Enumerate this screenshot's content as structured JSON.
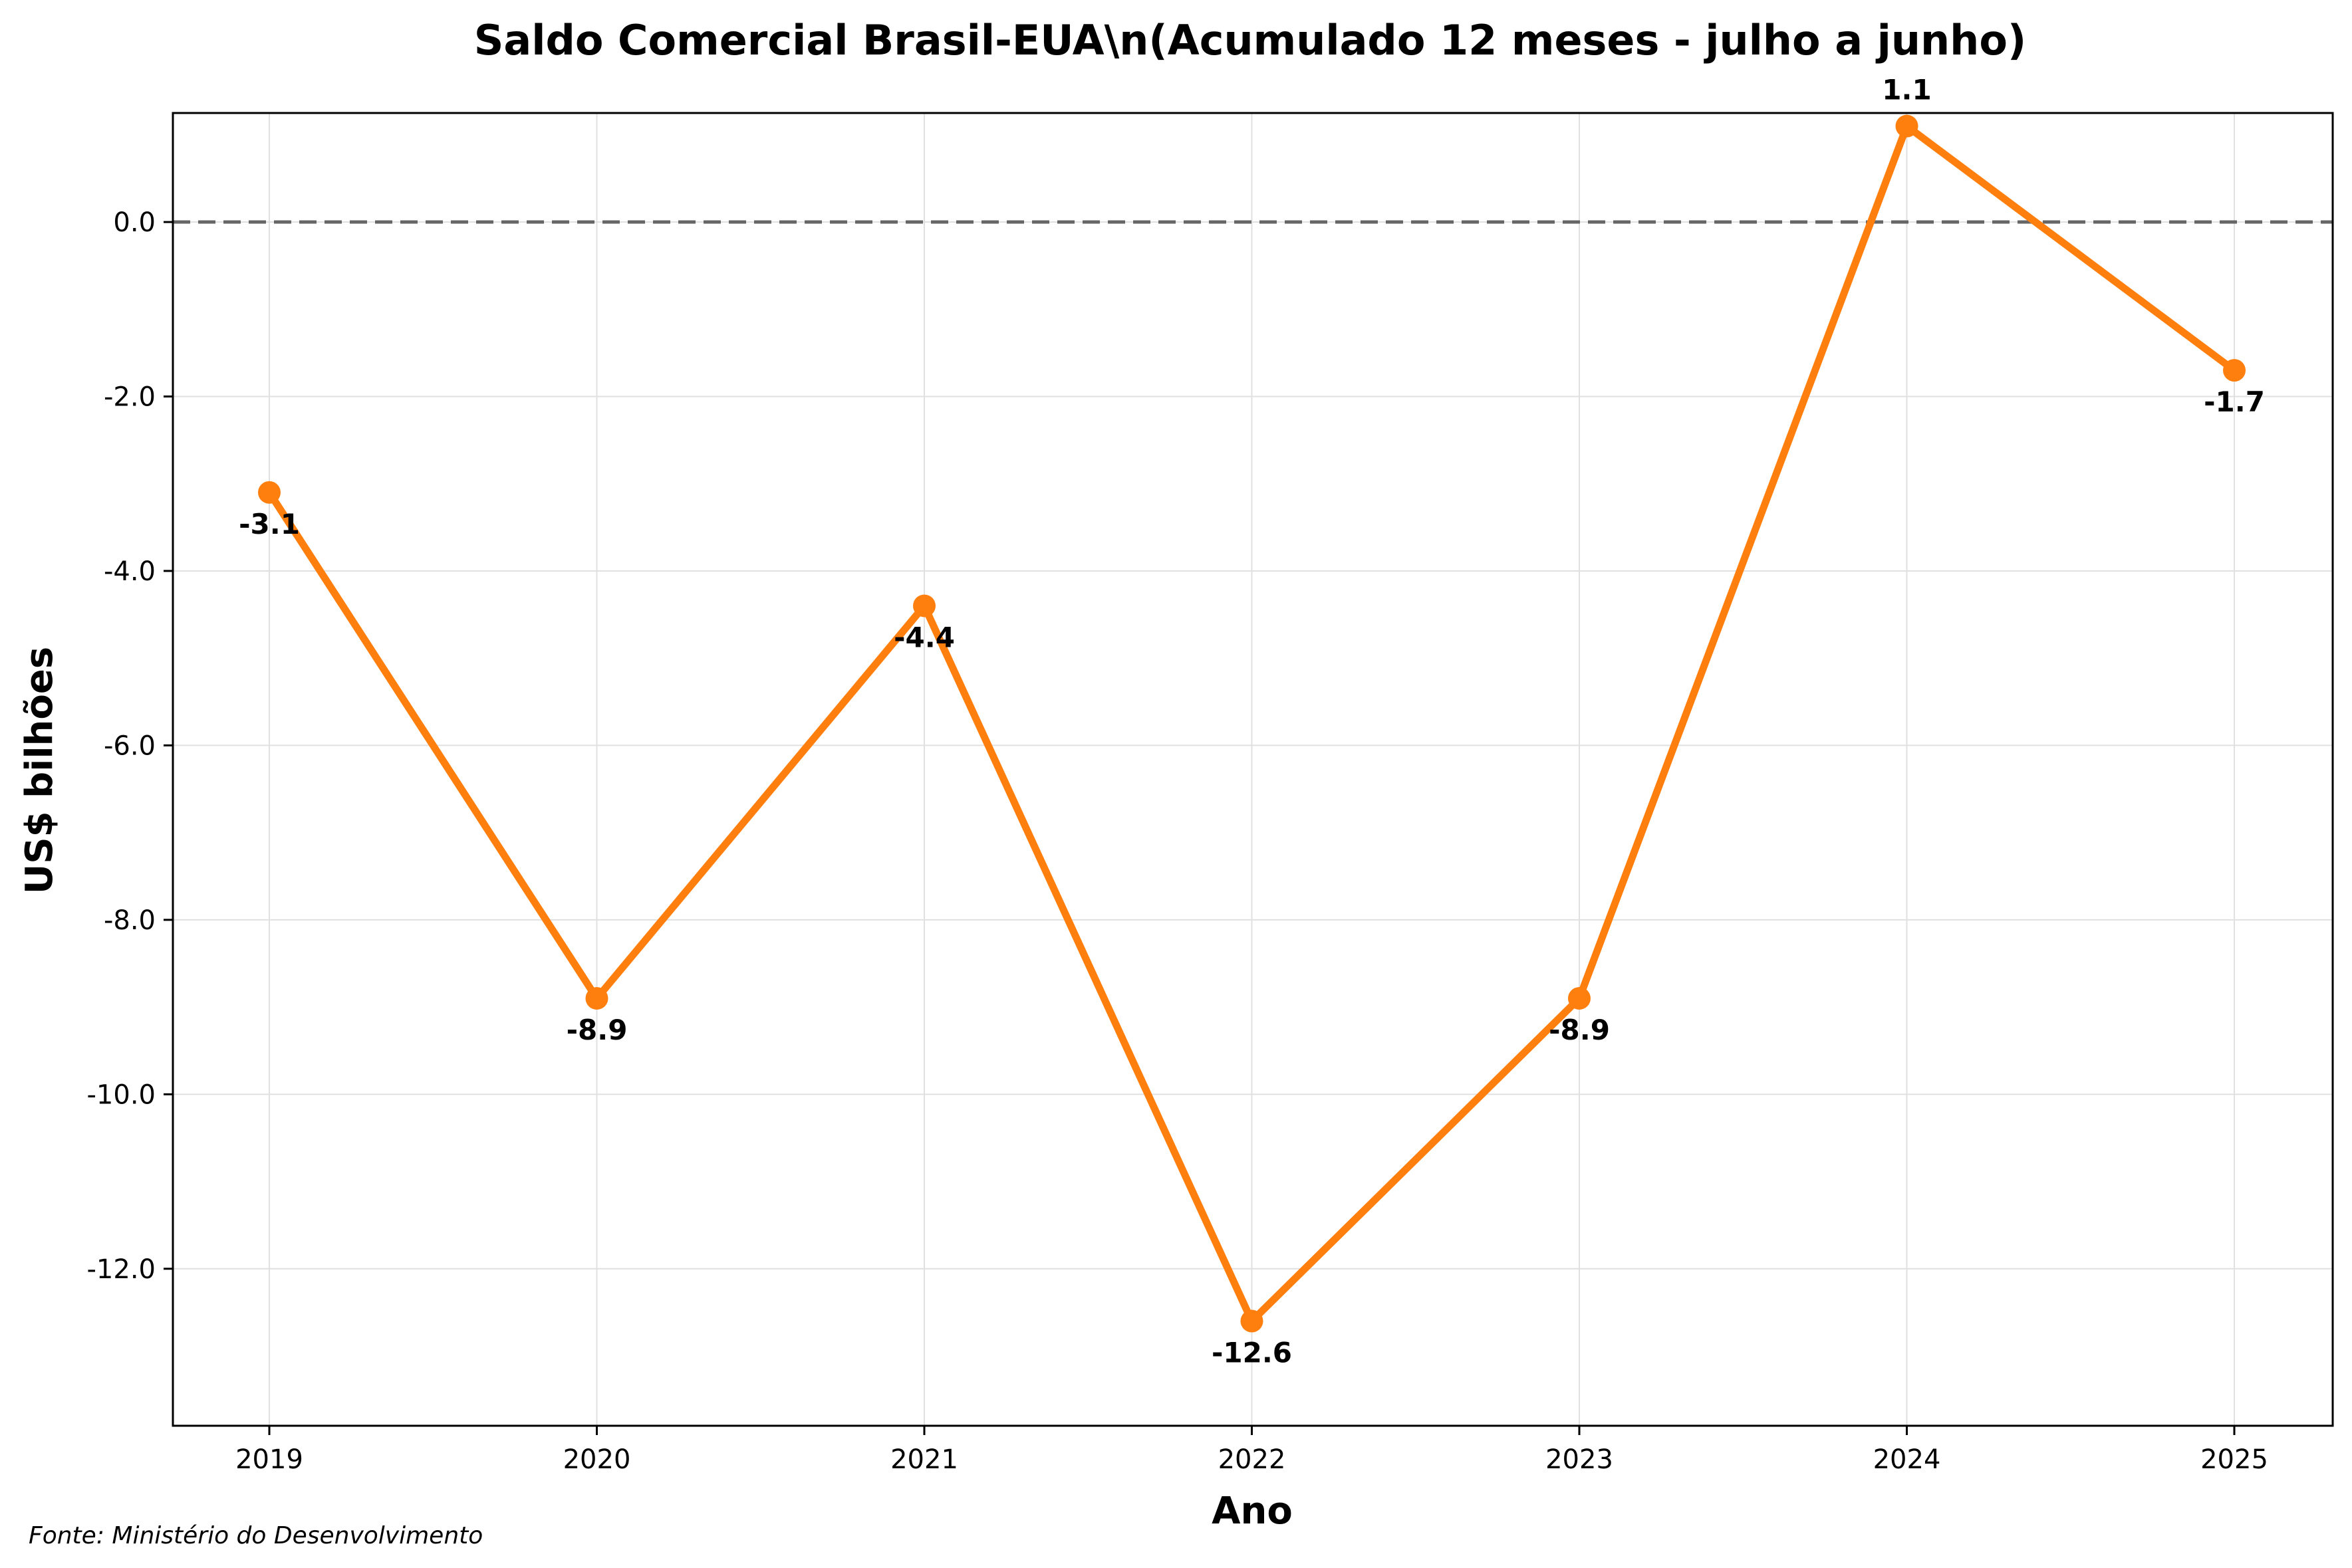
{
  "chart_data": {
    "type": "line",
    "title": "Saldo Comercial Brasil-EUA\\n(Acumulado 12 meses - julho a junho)",
    "xlabel": "Ano",
    "ylabel": "US$ bilhões",
    "categories": [
      "2019",
      "2020",
      "2021",
      "2022",
      "2023",
      "2024",
      "2025"
    ],
    "values": [
      -3.1,
      -8.9,
      -4.4,
      -12.6,
      -8.9,
      1.1,
      -1.7
    ],
    "data_labels": [
      "-3.1",
      "-8.9",
      "-4.4",
      "-12.6",
      "-8.9",
      "1.1",
      "-1.7"
    ],
    "ylim": [
      -13.8,
      1.25
    ],
    "yticks": [
      0,
      -2,
      -4,
      -6,
      -8,
      -10,
      -12
    ],
    "ytick_labels": [
      "0.0",
      "-2.0",
      "-4.0",
      "-6.0",
      "-8.0",
      "-10.0",
      "-12.0"
    ],
    "reference_line": 0,
    "grid": true,
    "line_color": "#ff7f0e",
    "reference_line_color": "#666666",
    "grid_color": "#e0e0e0"
  },
  "footer": {
    "source": "Fonte: Ministério do Desenvolvimento"
  }
}
